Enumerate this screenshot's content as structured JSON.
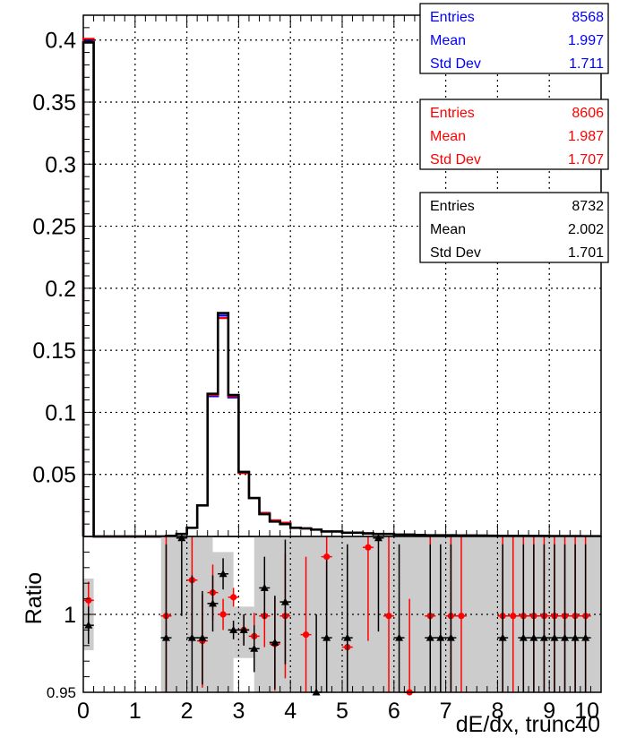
{
  "chart_data": [
    {
      "type": "line",
      "subtype": "step-histogram",
      "xlabel": "dE/dx, trunc40",
      "ylabel": "",
      "xlim": [
        0,
        10
      ],
      "ylim": [
        0,
        0.42
      ],
      "y_ticks": [
        "0",
        "0.05",
        "0.1",
        "0.15",
        "0.2",
        "0.25",
        "0.3",
        "0.35",
        "0.4"
      ],
      "grid": true,
      "bin_edges": [
        0,
        0.2,
        0.4,
        0.6,
        0.8,
        1.0,
        1.2,
        1.4,
        1.6,
        1.8,
        2.0,
        2.2,
        2.4,
        2.6,
        2.8,
        3.0,
        3.2,
        3.4,
        3.6,
        3.8,
        4.0,
        4.2,
        4.4,
        4.6,
        4.8,
        5.0,
        5.2,
        5.4,
        5.6,
        5.8,
        6.0,
        6.2,
        6.4,
        6.6,
        6.8,
        7.0,
        7.2,
        7.4,
        7.6,
        7.8,
        8.0,
        8.2,
        8.4,
        8.6,
        8.8,
        9.0,
        9.2,
        9.4,
        9.6,
        9.8,
        10.0
      ],
      "series": [
        {
          "color": "#0000ff",
          "values": [
            0.399,
            0,
            0,
            0,
            0,
            0,
            0,
            0,
            0.0005,
            0.002,
            0.007,
            0.025,
            0.113,
            0.178,
            0.112,
            0.052,
            0.031,
            0.019,
            0.013,
            0.011,
            0.007,
            0.0065,
            0.0055,
            0.004,
            0.004,
            0.003,
            0.003,
            0.0025,
            0.002,
            0.002,
            0.0015,
            0.0015,
            0.0012,
            0.001,
            0.001,
            0.001,
            0.0008,
            0.0008,
            0.0007,
            0.0006,
            0.0005,
            0.0005,
            0.0005,
            0.0004,
            0.0004,
            0.0003,
            0.0003,
            0.0003,
            0.0002,
            0.0002
          ]
        },
        {
          "color": "#ff0000",
          "values": [
            0.401,
            0,
            0,
            0,
            0,
            0,
            0,
            0,
            0.0005,
            0.002,
            0.007,
            0.025,
            0.114,
            0.176,
            0.113,
            0.051,
            0.031,
            0.019,
            0.013,
            0.011,
            0.007,
            0.0065,
            0.0055,
            0.004,
            0.004,
            0.003,
            0.003,
            0.0025,
            0.002,
            0.002,
            0.0015,
            0.0015,
            0.0012,
            0.001,
            0.001,
            0.001,
            0.0008,
            0.0008,
            0.0007,
            0.0006,
            0.0005,
            0.0005,
            0.0005,
            0.0004,
            0.0004,
            0.0003,
            0.0003,
            0.0003,
            0.0002,
            0.0002
          ]
        },
        {
          "color": "#000000",
          "values": [
            0.398,
            0,
            0,
            0,
            0,
            0,
            0,
            0,
            0.0005,
            0.002,
            0.007,
            0.025,
            0.115,
            0.18,
            0.114,
            0.052,
            0.031,
            0.018,
            0.012,
            0.01,
            0.007,
            0.0065,
            0.0055,
            0.004,
            0.004,
            0.003,
            0.003,
            0.0025,
            0.002,
            0.002,
            0.0015,
            0.0015,
            0.0012,
            0.001,
            0.001,
            0.001,
            0.0008,
            0.0008,
            0.0007,
            0.0006,
            0.0005,
            0.0005,
            0.0005,
            0.0004,
            0.0004,
            0.0003,
            0.0003,
            0.0003,
            0.0002,
            0.0002
          ]
        }
      ],
      "stats_boxes": [
        {
          "color": "#0000ff",
          "rows": [
            [
              "Entries",
              "8568"
            ],
            [
              "Mean",
              "1.997"
            ],
            [
              "Std Dev",
              "1.711"
            ]
          ]
        },
        {
          "color": "#ff0000",
          "rows": [
            [
              "Entries",
              "8606"
            ],
            [
              "Mean",
              "1.987"
            ],
            [
              "Std Dev",
              "1.707"
            ]
          ]
        },
        {
          "color": "#000000",
          "rows": [
            [
              "Entries",
              "8732"
            ],
            [
              "Mean",
              "2.002"
            ],
            [
              "Std Dev",
              "1.701"
            ]
          ]
        }
      ]
    },
    {
      "type": "scatter",
      "subtype": "ratio-panel",
      "ylabel": "Ratio",
      "xlabel": "dE/dx, trunc40",
      "xlim": [
        0,
        10
      ],
      "ylim": [
        0.95,
        1.05
      ],
      "x_ticks": [
        "0",
        "1",
        "2",
        "3",
        "4",
        "5",
        "6",
        "7",
        "8",
        "9",
        "10"
      ],
      "y_ticks": [
        "0.95",
        "1",
        "1.05"
      ],
      "grid": true,
      "band_color": "#cccccc",
      "band": [
        {
          "x": [
            0.0,
            0.2
          ],
          "y": [
            0.977,
            1.023
          ]
        },
        {
          "x": [
            1.5,
            2.5
          ],
          "y": [
            0.95,
            1.05
          ]
        },
        {
          "x": [
            2.5,
            2.9
          ],
          "y": [
            0.95,
            1.04
          ]
        },
        {
          "x": [
            2.9,
            3.3
          ],
          "y": [
            0.972,
            1.005
          ]
        },
        {
          "x": [
            3.3,
            10.0
          ],
          "y": [
            0.95,
            1.05
          ]
        }
      ],
      "series": [
        {
          "color": "#ff0000",
          "marker": "circle",
          "points": [
            {
              "x": 0.1,
              "y": 1.009,
              "err": 0.012
            },
            {
              "x": 1.6,
              "y": 0.999,
              "err": 0.06
            },
            {
              "x": 2.1,
              "y": 1.022,
              "err": 0.04
            },
            {
              "x": 2.3,
              "y": 0.983,
              "err": 0.03
            },
            {
              "x": 2.5,
              "y": 1.014,
              "err": 0.018
            },
            {
              "x": 2.7,
              "y": 1.0,
              "err": 0.01
            },
            {
              "x": 2.9,
              "y": 1.011,
              "err": 0.006
            },
            {
              "x": 3.1,
              "y": 0.99,
              "err": 0.01
            },
            {
              "x": 3.3,
              "y": 0.986,
              "err": 0.015
            },
            {
              "x": 3.5,
              "y": 0.999,
              "err": 0.02
            },
            {
              "x": 3.7,
              "y": 0.981,
              "err": 0.03
            },
            {
              "x": 3.9,
              "y": 0.999,
              "err": 0.04
            },
            {
              "x": 4.3,
              "y": 0.987,
              "err": 0.05
            },
            {
              "x": 4.7,
              "y": 1.037,
              "err": 0.05
            },
            {
              "x": 5.1,
              "y": 0.979,
              "err": 0.06
            },
            {
              "x": 5.5,
              "y": 1.043,
              "err": 0.06
            },
            {
              "x": 5.9,
              "y": 0.999,
              "err": 0.06
            },
            {
              "x": 6.3,
              "y": 0.95,
              "err": 0.06
            },
            {
              "x": 6.7,
              "y": 0.999,
              "err": 0.06
            },
            {
              "x": 7.1,
              "y": 0.999,
              "err": 0.06
            },
            {
              "x": 7.3,
              "y": 0.999,
              "err": 0.06
            },
            {
              "x": 8.1,
              "y": 0.999,
              "err": 0.06
            },
            {
              "x": 8.3,
              "y": 0.999,
              "err": 0.06
            },
            {
              "x": 8.5,
              "y": 0.999,
              "err": 0.06
            },
            {
              "x": 8.7,
              "y": 0.999,
              "err": 0.06
            },
            {
              "x": 8.9,
              "y": 0.999,
              "err": 0.06
            },
            {
              "x": 9.1,
              "y": 0.999,
              "err": 0.06
            },
            {
              "x": 9.3,
              "y": 0.999,
              "err": 0.06
            },
            {
              "x": 9.5,
              "y": 0.999,
              "err": 0.06
            },
            {
              "x": 9.7,
              "y": 0.999,
              "err": 0.06
            }
          ]
        },
        {
          "color": "#000000",
          "marker": "triangle",
          "points": [
            {
              "x": 0.1,
              "y": 0.993,
              "err": 0.012
            },
            {
              "x": 1.6,
              "y": 0.985,
              "err": 0.06
            },
            {
              "x": 1.9,
              "y": 1.049,
              "err": 0.05
            },
            {
              "x": 2.1,
              "y": 0.985,
              "err": 0.04
            },
            {
              "x": 2.3,
              "y": 0.985,
              "err": 0.03
            },
            {
              "x": 2.5,
              "y": 1.007,
              "err": 0.018
            },
            {
              "x": 2.7,
              "y": 1.026,
              "err": 0.01
            },
            {
              "x": 2.9,
              "y": 0.99,
              "err": 0.006
            },
            {
              "x": 3.1,
              "y": 0.99,
              "err": 0.01
            },
            {
              "x": 3.3,
              "y": 0.978,
              "err": 0.015
            },
            {
              "x": 3.5,
              "y": 1.017,
              "err": 0.02
            },
            {
              "x": 3.7,
              "y": 0.982,
              "err": 0.03
            },
            {
              "x": 3.9,
              "y": 1.008,
              "err": 0.04
            },
            {
              "x": 4.5,
              "y": 0.95,
              "err": 0.05
            },
            {
              "x": 4.7,
              "y": 0.985,
              "err": 0.05
            },
            {
              "x": 5.1,
              "y": 0.985,
              "err": 0.06
            },
            {
              "x": 5.7,
              "y": 1.049,
              "err": 0.06
            },
            {
              "x": 6.1,
              "y": 0.985,
              "err": 0.06
            },
            {
              "x": 6.7,
              "y": 0.985,
              "err": 0.06
            },
            {
              "x": 6.9,
              "y": 0.985,
              "err": 0.06
            },
            {
              "x": 7.1,
              "y": 0.985,
              "err": 0.06
            },
            {
              "x": 8.1,
              "y": 0.985,
              "err": 0.06
            },
            {
              "x": 8.5,
              "y": 0.985,
              "err": 0.06
            },
            {
              "x": 8.7,
              "y": 0.985,
              "err": 0.06
            },
            {
              "x": 8.9,
              "y": 0.985,
              "err": 0.06
            },
            {
              "x": 9.1,
              "y": 0.985,
              "err": 0.06
            },
            {
              "x": 9.3,
              "y": 0.985,
              "err": 0.06
            },
            {
              "x": 9.5,
              "y": 0.985,
              "err": 0.06
            },
            {
              "x": 9.7,
              "y": 0.985,
              "err": 0.06
            }
          ]
        }
      ]
    }
  ]
}
